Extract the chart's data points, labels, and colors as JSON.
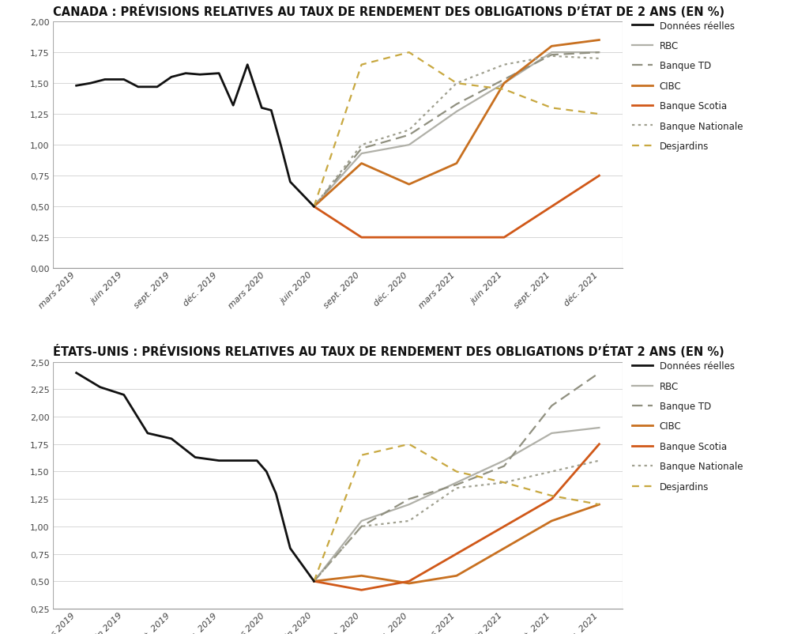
{
  "title1": "CANADA : PRÉVISIONS RELATIVES AU TAUX DE RENDEMENT DES OBLIGATIONS D’ÉTAT DE 2 ANS (EN %)",
  "title2": "ÉTATS-UNIS : PRÉVISIONS RELATIVES AU TAUX DE RENDEMENT DES OBLIGATIONS D’ÉTAT 2 ANS (EN %)",
  "x_labels": [
    "mars 2019",
    "juin 2019",
    "sept. 2019",
    "déc. 2019",
    "mars 2020",
    "juin 2020",
    "sept. 2020",
    "déc. 2020",
    "mars 2021",
    "juin 2021",
    "sept. 2021",
    "déc. 2021"
  ],
  "legend_labels": [
    "Données réelles",
    "RBC",
    "Banque TD",
    "CIBC",
    "Banque Scotia",
    "Banque Nationale",
    "Desjardins"
  ],
  "colors": {
    "donnees_reelles": "#111111",
    "rbc": "#b0b0a8",
    "banquetd": "#909080",
    "cibc": "#c87020",
    "banquescotia": "#d05818",
    "banquenationale": "#a0a090",
    "desjardins": "#c8a840"
  },
  "background": "#ffffff",
  "plot_bg": "#ffffff",
  "grid_color": "#d0d0d0",
  "title_fontsize": 10.5,
  "legend_fontsize": 8.5,
  "tick_fontsize": 8.0,
  "canada_ylim": [
    0.0,
    2.0
  ],
  "canada_yticks": [
    0.0,
    0.25,
    0.5,
    0.75,
    1.0,
    1.25,
    1.5,
    1.75,
    2.0
  ],
  "usa_ylim": [
    0.25,
    2.5
  ],
  "usa_yticks": [
    0.25,
    0.5,
    0.75,
    1.0,
    1.25,
    1.5,
    1.75,
    2.0,
    2.25,
    2.5
  ]
}
